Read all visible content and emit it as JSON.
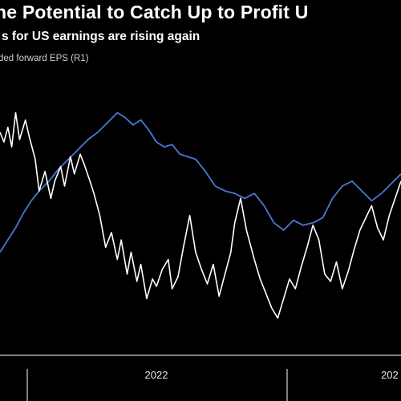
{
  "header": {
    "title": "he Potential to Catch Up to Profit U",
    "subtitle": "s for US earnings are rising again",
    "legend_label": "ded forward EPS (R1)"
  },
  "colors": {
    "background": "#000000",
    "white_series": "#ffffff",
    "blue_series": "#4a78d2",
    "axis": "#ffffff"
  },
  "chart_data": {
    "type": "line",
    "title": "he Potential to Catch Up to Profit U",
    "subtitle": "s for US earnings are rising again",
    "x_ticks": [
      "2022",
      "202"
    ],
    "xlim": [
      2021.0,
      2023.05
    ],
    "ylim": [
      0,
      100
    ],
    "grid": false,
    "series": [
      {
        "name": "",
        "color": "#ffffff",
        "x": [
          2021.0,
          2021.02,
          2021.04,
          2021.06,
          2021.08,
          2021.1,
          2021.13,
          2021.15,
          2021.18,
          2021.2,
          2021.23,
          2021.26,
          2021.28,
          2021.31,
          2021.33,
          2021.36,
          2021.38,
          2021.41,
          2021.43,
          2021.46,
          2021.48,
          2021.51,
          2021.54,
          2021.57,
          2021.6,
          2021.62,
          2021.65,
          2021.67,
          2021.7,
          2021.72,
          2021.75,
          2021.78,
          2021.8,
          2021.83,
          2021.86,
          2021.88,
          2021.91,
          2021.94,
          2021.97,
          2022.0,
          2022.03,
          2022.06,
          2022.09,
          2022.12,
          2022.15,
          2022.18,
          2022.2,
          2022.23,
          2022.26,
          2022.3,
          2022.33,
          2022.36,
          2022.39,
          2022.42,
          2022.45,
          2022.48,
          2022.51,
          2022.54,
          2022.57,
          2022.6,
          2022.63,
          2022.66,
          2022.69,
          2022.72,
          2022.75,
          2022.78,
          2022.81,
          2022.84,
          2022.87,
          2022.9,
          2022.93,
          2022.96,
          2022.99,
          2023.02,
          2023.05
        ],
        "values": [
          82,
          78,
          84,
          76,
          90,
          79,
          87,
          80,
          71,
          58,
          66,
          55,
          62,
          68,
          60,
          72,
          65,
          73,
          69,
          62,
          57,
          48,
          35,
          41,
          30,
          38,
          24,
          33,
          21,
          28,
          14,
          22,
          19,
          26,
          30,
          18,
          23,
          36,
          48,
          33,
          26,
          20,
          28,
          15,
          24,
          33,
          45,
          55,
          42,
          30,
          22,
          16,
          10,
          6,
          14,
          22,
          18,
          27,
          35,
          44,
          38,
          24,
          21,
          29,
          18,
          25,
          34,
          42,
          47,
          52,
          43,
          38,
          48,
          55,
          62
        ]
      },
      {
        "name": "ded forward EPS (R1)",
        "color": "#4a78d2",
        "x": [
          2021.0,
          2021.04,
          2021.08,
          2021.12,
          2021.16,
          2021.2,
          2021.25,
          2021.3,
          2021.35,
          2021.4,
          2021.45,
          2021.5,
          2021.55,
          2021.6,
          2021.64,
          2021.68,
          2021.72,
          2021.76,
          2021.8,
          2021.84,
          2021.88,
          2021.92,
          2021.96,
          2022.0,
          2022.05,
          2022.1,
          2022.15,
          2022.2,
          2022.25,
          2022.3,
          2022.35,
          2022.4,
          2022.45,
          2022.5,
          2022.55,
          2022.6,
          2022.65,
          2022.7,
          2022.75,
          2022.8,
          2022.85,
          2022.9,
          2022.95,
          2023.0,
          2023.05
        ],
        "values": [
          33,
          38,
          43,
          49,
          54,
          58,
          62,
          67,
          71,
          75,
          79,
          82,
          86,
          90,
          88,
          85,
          87,
          83,
          78,
          76,
          77,
          73,
          72,
          71,
          66,
          60,
          58,
          57,
          55,
          57,
          52,
          45,
          42,
          46,
          44,
          45,
          47,
          55,
          60,
          62,
          58,
          54,
          57,
          61,
          65
        ]
      }
    ]
  }
}
